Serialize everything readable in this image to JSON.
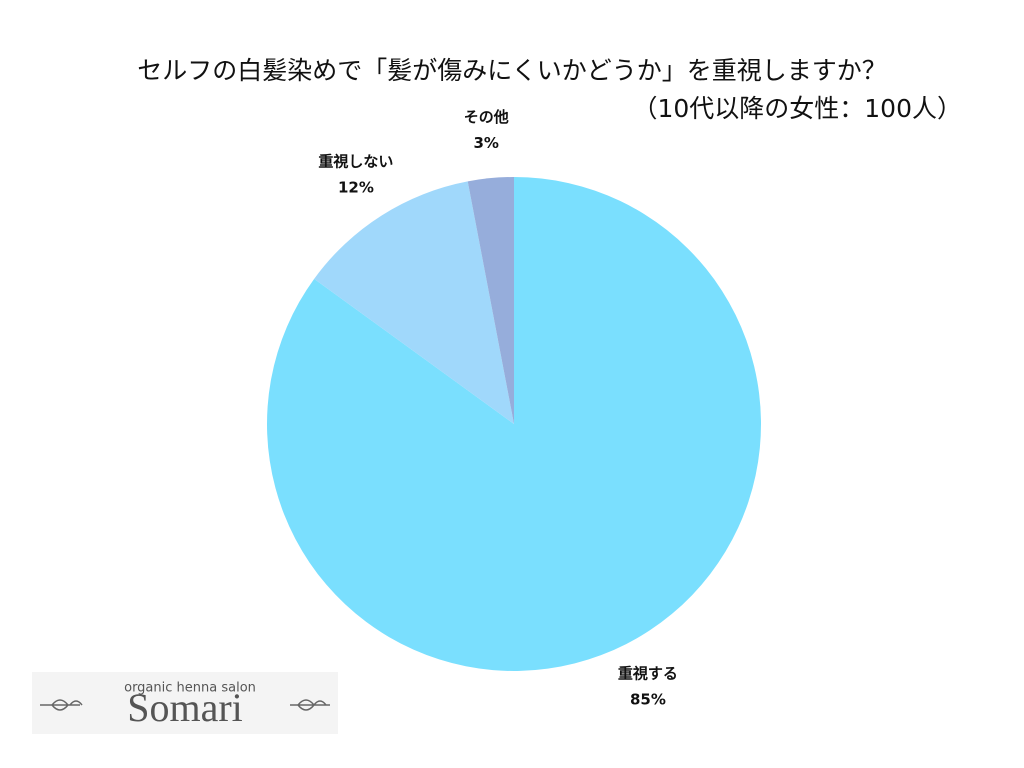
{
  "chart_data": {
    "type": "pie",
    "title": "セルフの白髪染めで「髪が傷みにくいかどうか」を重視しますか？",
    "subtitle": "（10代以降の女性：100人）",
    "categories": [
      "重視する",
      "重視しない",
      "その他"
    ],
    "values": [
      85,
      12,
      3
    ],
    "value_labels": [
      "85%",
      "12%",
      "3%"
    ],
    "colors": [
      "#7adffe",
      "#a0d8fb",
      "#96addb"
    ]
  },
  "logo": {
    "tagline": "organic henna salon",
    "name": "Somari"
  }
}
